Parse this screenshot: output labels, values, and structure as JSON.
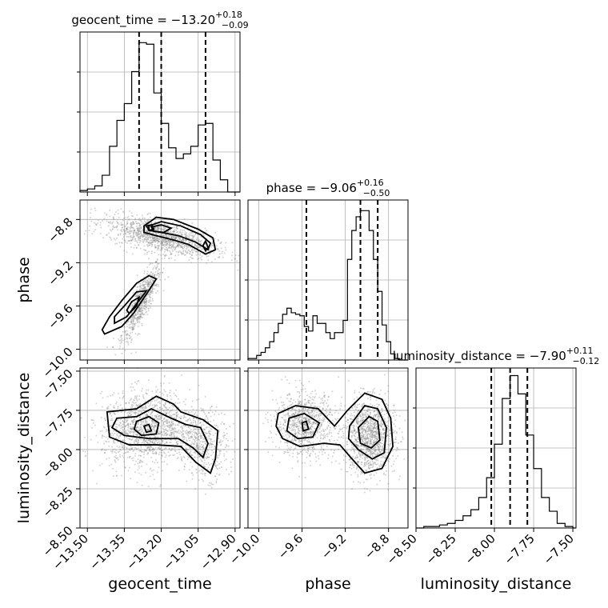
{
  "chart_data": {
    "type": "corner",
    "parameters": [
      "geocent_time",
      "phase",
      "luminosity_distance"
    ],
    "grid": true,
    "titles": {
      "geocent_time": {
        "prefix": "geocent_time = ",
        "median": "−13.20",
        "plus": "+0.18",
        "minus": "−0.09"
      },
      "phase": {
        "prefix": "phase = ",
        "median": "−9.06",
        "plus": "+0.16",
        "minus": "−0.50"
      },
      "luminosity_distance": {
        "prefix": "luminosity_distance = ",
        "median": "−7.90",
        "plus": "+0.11",
        "minus": "−0.12"
      }
    },
    "axes": {
      "geocent_time": {
        "range": [
          -13.53,
          -12.88
        ],
        "ticks": [
          -13.5,
          -13.35,
          -13.2,
          -13.05,
          -12.9
        ],
        "ticklabels": [
          "−13.50",
          "−13.35",
          "−13.20",
          "−13.05",
          "−12.90"
        ],
        "label": "geocent_time"
      },
      "phase": {
        "range": [
          -10.1,
          -8.62
        ],
        "ticks": [
          -10.0,
          -9.6,
          -9.2,
          -8.8
        ],
        "ticklabels": [
          "−10.0",
          "−9.6",
          "−9.2",
          "−8.8"
        ],
        "label": "phase"
      },
      "luminosity_distance": {
        "range": [
          -8.5,
          -7.48
        ],
        "ticks": [
          -8.5,
          -8.25,
          -8.0,
          -7.75,
          -7.5
        ],
        "ticklabels": [
          "−8.50",
          "−8.25",
          "−8.00",
          "−7.75",
          "−7.50"
        ],
        "label": "luminosity_distance"
      }
    },
    "histograms": {
      "geocent_time": {
        "edges": [
          -13.53,
          -13.5,
          -13.47,
          -13.44,
          -13.41,
          -13.38,
          -13.35,
          -13.32,
          -13.29,
          -13.26,
          -13.23,
          -13.2,
          -13.17,
          -13.14,
          -13.11,
          -13.08,
          -13.05,
          -13.02,
          -12.99,
          -12.96,
          -12.93,
          -12.9,
          -12.88
        ],
        "counts": [
          0.01,
          0.02,
          0.04,
          0.11,
          0.3,
          0.47,
          0.58,
          0.79,
          0.98,
          0.97,
          0.65,
          0.45,
          0.29,
          0.22,
          0.25,
          0.3,
          0.44,
          0.45,
          0.21,
          0.08,
          0.0,
          0.0
        ],
        "quantiles": [
          -13.29,
          -13.2,
          -13.02
        ],
        "ymax": 1.05
      },
      "phase": {
        "edges": [
          -10.1,
          -10.06,
          -10.02,
          -9.98,
          -9.94,
          -9.9,
          -9.86,
          -9.82,
          -9.78,
          -9.74,
          -9.7,
          -9.66,
          -9.62,
          -9.58,
          -9.54,
          -9.5,
          -9.46,
          -9.42,
          -9.38,
          -9.34,
          -9.3,
          -9.26,
          -9.22,
          -9.18,
          -9.14,
          -9.1,
          -9.06,
          -9.02,
          -8.98,
          -8.94,
          -8.9,
          -8.86,
          -8.82,
          -8.78,
          -8.74,
          -8.7,
          -8.66,
          -8.62
        ],
        "counts": [
          0.01,
          0.01,
          0.03,
          0.05,
          0.08,
          0.12,
          0.18,
          0.24,
          0.3,
          0.34,
          0.31,
          0.3,
          0.29,
          0.22,
          0.19,
          0.29,
          0.24,
          0.24,
          0.18,
          0.14,
          0.18,
          0.18,
          0.26,
          0.66,
          0.85,
          0.94,
          0.98,
          0.98,
          0.85,
          0.66,
          0.45,
          0.23,
          0.12,
          0.04,
          0.01,
          0.0,
          0.0
        ],
        "quantiles": [
          -9.56,
          -9.06,
          -8.9
        ],
        "ymax": 1.05
      },
      "luminosity_distance": {
        "edges": [
          -8.5,
          -8.45,
          -8.4,
          -8.35,
          -8.3,
          -8.25,
          -8.2,
          -8.15,
          -8.1,
          -8.05,
          -8.0,
          -7.95,
          -7.9,
          -7.85,
          -7.8,
          -7.75,
          -7.7,
          -7.65,
          -7.6,
          -7.55,
          -7.5,
          -7.48
        ],
        "counts": [
          0.0,
          0.01,
          0.01,
          0.02,
          0.03,
          0.05,
          0.08,
          0.12,
          0.2,
          0.33,
          0.55,
          0.85,
          1.0,
          0.88,
          0.61,
          0.39,
          0.2,
          0.11,
          0.03,
          0.01,
          0.0
        ],
        "quantiles": [
          -8.02,
          -7.9,
          -7.79
        ],
        "ymax": 1.05
      }
    },
    "contours": [
      {
        "x": "geocent_time",
        "y": "phase",
        "modes": [
          {
            "cx": -13.28,
            "cy": -9.56,
            "sx": 0.04,
            "sy": 0.18,
            "rho": 0.85,
            "n": 700
          },
          {
            "cx": -13.2,
            "cy": -8.96,
            "sx": 0.11,
            "sy": 0.09,
            "rho": -0.6,
            "n": 1300
          }
        ],
        "levels": [
          {
            "points": [
              [
                -13.43,
                -9.86
              ],
              [
                -13.36,
                -9.79
              ],
              [
                -13.31,
                -9.66
              ],
              [
                -13.26,
                -9.49
              ],
              [
                -13.22,
                -9.35
              ],
              [
                -13.25,
                -9.32
              ],
              [
                -13.3,
                -9.39
              ],
              [
                -13.36,
                -9.55
              ],
              [
                -13.41,
                -9.7
              ],
              [
                -13.44,
                -9.82
              ]
            ]
          },
          {
            "points": [
              [
                -13.39,
                -9.76
              ],
              [
                -13.34,
                -9.7
              ],
              [
                -13.3,
                -9.58
              ],
              [
                -13.26,
                -9.46
              ],
              [
                -13.3,
                -9.47
              ],
              [
                -13.35,
                -9.6
              ],
              [
                -13.39,
                -9.7
              ]
            ]
          },
          {
            "points": [
              [
                -13.33,
                -9.67
              ],
              [
                -13.3,
                -9.6
              ],
              [
                -13.29,
                -9.52
              ],
              [
                -13.32,
                -9.56
              ],
              [
                -13.34,
                -9.64
              ]
            ]
          },
          {
            "points": [
              [
                -13.27,
                -8.86
              ],
              [
                -13.22,
                -8.78
              ],
              [
                -13.15,
                -8.8
              ],
              [
                -13.05,
                -8.89
              ],
              [
                -12.99,
                -8.97
              ],
              [
                -12.98,
                -9.08
              ],
              [
                -13.02,
                -9.12
              ],
              [
                -13.09,
                -9.03
              ],
              [
                -13.15,
                -8.99
              ],
              [
                -13.22,
                -8.95
              ],
              [
                -13.27,
                -8.92
              ]
            ]
          },
          {
            "points": [
              [
                -13.25,
                -8.86
              ],
              [
                -13.2,
                -8.82
              ],
              [
                -13.12,
                -8.86
              ],
              [
                -13.04,
                -8.94
              ],
              [
                -13.0,
                -9.02
              ],
              [
                -13.01,
                -9.08
              ],
              [
                -13.06,
                -9.01
              ],
              [
                -13.13,
                -8.95
              ],
              [
                -13.2,
                -8.92
              ],
              [
                -13.25,
                -8.9
              ]
            ]
          },
          {
            "points": [
              [
                -13.24,
                -8.87
              ],
              [
                -13.2,
                -8.85
              ],
              [
                -13.16,
                -8.88
              ],
              [
                -13.19,
                -8.92
              ],
              [
                -13.23,
                -8.91
              ]
            ]
          },
          {
            "points": [
              [
                -13.26,
                -8.86
              ],
              [
                -13.24,
                -8.85
              ],
              [
                -13.23,
                -8.89
              ],
              [
                -13.25,
                -8.9
              ]
            ]
          },
          {
            "points": [
              [
                -13.02,
                -9.0
              ],
              [
                -13.01,
                -9.06
              ],
              [
                -13.02,
                -9.09
              ],
              [
                -13.03,
                -9.04
              ]
            ]
          }
        ]
      },
      {
        "x": "geocent_time",
        "y": "luminosity_distance",
        "modes": [
          {
            "cx": -13.26,
            "cy": -7.87,
            "sx": 0.09,
            "sy": 0.12,
            "rho": 0.1,
            "n": 1400
          },
          {
            "cx": -13.03,
            "cy": -7.96,
            "sx": 0.05,
            "sy": 0.11,
            "rho": -0.1,
            "n": 500
          }
        ],
        "levels": [
          {
            "points": [
              [
                -13.42,
                -7.76
              ],
              [
                -13.3,
                -7.74
              ],
              [
                -13.22,
                -7.66
              ],
              [
                -13.15,
                -7.71
              ],
              [
                -13.12,
                -7.76
              ],
              [
                -13.03,
                -7.81
              ],
              [
                -12.97,
                -7.88
              ],
              [
                -12.98,
                -8.06
              ],
              [
                -13.0,
                -8.15
              ],
              [
                -13.06,
                -8.08
              ],
              [
                -13.12,
                -7.98
              ],
              [
                -13.22,
                -7.97
              ],
              [
                -13.33,
                -7.97
              ],
              [
                -13.41,
                -7.92
              ]
            ]
          },
          {
            "points": [
              [
                -13.38,
                -7.8
              ],
              [
                -13.3,
                -7.79
              ],
              [
                -13.24,
                -7.74
              ],
              [
                -13.16,
                -7.8
              ],
              [
                -13.1,
                -7.84
              ],
              [
                -13.04,
                -7.86
              ],
              [
                -13.01,
                -7.96
              ],
              [
                -13.03,
                -8.05
              ],
              [
                -13.07,
                -7.99
              ],
              [
                -13.13,
                -7.93
              ],
              [
                -13.25,
                -7.93
              ],
              [
                -13.35,
                -7.91
              ],
              [
                -13.4,
                -7.86
              ]
            ]
          },
          {
            "points": [
              [
                -13.3,
                -7.82
              ],
              [
                -13.25,
                -7.79
              ],
              [
                -13.21,
                -7.83
              ],
              [
                -13.22,
                -7.9
              ],
              [
                -13.28,
                -7.91
              ],
              [
                -13.31,
                -7.87
              ]
            ]
          },
          {
            "points": [
              [
                -13.27,
                -7.85
              ],
              [
                -13.25,
                -7.84
              ],
              [
                -13.24,
                -7.88
              ],
              [
                -13.26,
                -7.89
              ]
            ]
          }
        ]
      },
      {
        "x": "phase",
        "y": "luminosity_distance",
        "modes": [
          {
            "cx": -9.58,
            "cy": -7.84,
            "sx": 0.14,
            "sy": 0.1,
            "rho": 0.0,
            "n": 900
          },
          {
            "cx": -8.98,
            "cy": -7.92,
            "sx": 0.12,
            "sy": 0.12,
            "rho": 0.0,
            "n": 1200
          }
        ],
        "levels": [
          {
            "points": [
              [
                -9.82,
                -7.77
              ],
              [
                -9.66,
                -7.72
              ],
              [
                -9.45,
                -7.74
              ],
              [
                -9.3,
                -7.85
              ],
              [
                -9.18,
                -7.75
              ],
              [
                -9.02,
                -7.64
              ],
              [
                -8.86,
                -7.68
              ],
              [
                -8.78,
                -7.8
              ],
              [
                -8.76,
                -7.98
              ],
              [
                -8.86,
                -8.12
              ],
              [
                -9.02,
                -8.15
              ],
              [
                -9.15,
                -8.05
              ],
              [
                -9.25,
                -7.97
              ],
              [
                -9.4,
                -7.96
              ],
              [
                -9.62,
                -7.98
              ],
              [
                -9.78,
                -7.93
              ],
              [
                -9.84,
                -7.85
              ]
            ]
          },
          {
            "points": [
              [
                -9.72,
                -7.8
              ],
              [
                -9.58,
                -7.77
              ],
              [
                -9.44,
                -7.83
              ],
              [
                -9.5,
                -7.92
              ],
              [
                -9.64,
                -7.93
              ],
              [
                -9.74,
                -7.88
              ]
            ]
          },
          {
            "points": [
              [
                -9.16,
                -7.85
              ],
              [
                -9.02,
                -7.72
              ],
              [
                -8.9,
                -7.74
              ],
              [
                -8.82,
                -7.86
              ],
              [
                -8.84,
                -8.02
              ],
              [
                -8.95,
                -8.06
              ],
              [
                -9.08,
                -8.0
              ],
              [
                -9.17,
                -7.93
              ]
            ]
          },
          {
            "points": [
              [
                -9.08,
                -7.86
              ],
              [
                -8.98,
                -7.79
              ],
              [
                -8.9,
                -7.82
              ],
              [
                -8.88,
                -7.94
              ],
              [
                -8.96,
                -7.99
              ],
              [
                -9.06,
                -7.96
              ]
            ]
          },
          {
            "points": [
              [
                -9.6,
                -7.83
              ],
              [
                -9.56,
                -7.82
              ],
              [
                -9.54,
                -7.87
              ],
              [
                -9.59,
                -7.88
              ]
            ]
          }
        ]
      }
    ]
  }
}
